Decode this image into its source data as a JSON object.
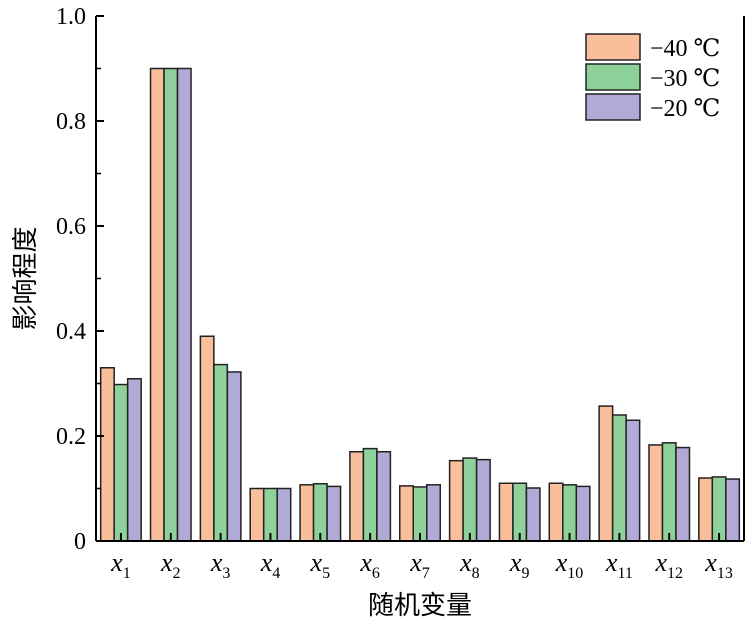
{
  "chart_data": {
    "type": "bar",
    "xlabel": "随机变量",
    "ylabel": "影响程度",
    "ylim": [
      0,
      1.0
    ],
    "yticks": [
      "0",
      "0.2",
      "0.4",
      "0.6",
      "0.8",
      "1.0"
    ],
    "categories": [
      {
        "base": "x",
        "sub": "1"
      },
      {
        "base": "x",
        "sub": "2"
      },
      {
        "base": "x",
        "sub": "3"
      },
      {
        "base": "x",
        "sub": "4"
      },
      {
        "base": "x",
        "sub": "5"
      },
      {
        "base": "x",
        "sub": "6"
      },
      {
        "base": "x",
        "sub": "7"
      },
      {
        "base": "x",
        "sub": "8"
      },
      {
        "base": "x",
        "sub": "9"
      },
      {
        "base": "x",
        "sub": "10"
      },
      {
        "base": "x",
        "sub": "11"
      },
      {
        "base": "x",
        "sub": "12"
      },
      {
        "base": "x",
        "sub": "13"
      }
    ],
    "series": [
      {
        "name": "−40 ℃",
        "color": "#F9BE9A",
        "values": [
          0.33,
          0.9,
          0.39,
          0.1,
          0.107,
          0.17,
          0.105,
          0.153,
          0.11,
          0.11,
          0.257,
          0.183,
          0.12
        ]
      },
      {
        "name": "−30 ℃",
        "color": "#8ED19A",
        "values": [
          0.298,
          0.9,
          0.336,
          0.1,
          0.109,
          0.176,
          0.103,
          0.158,
          0.11,
          0.107,
          0.24,
          0.187,
          0.122
        ]
      },
      {
        "name": "−20 ℃",
        "color": "#B1A9D6",
        "values": [
          0.309,
          0.9,
          0.322,
          0.1,
          0.104,
          0.17,
          0.107,
          0.155,
          0.101,
          0.104,
          0.23,
          0.178,
          0.118
        ]
      }
    ],
    "legend": "top-right",
    "grid": false
  }
}
